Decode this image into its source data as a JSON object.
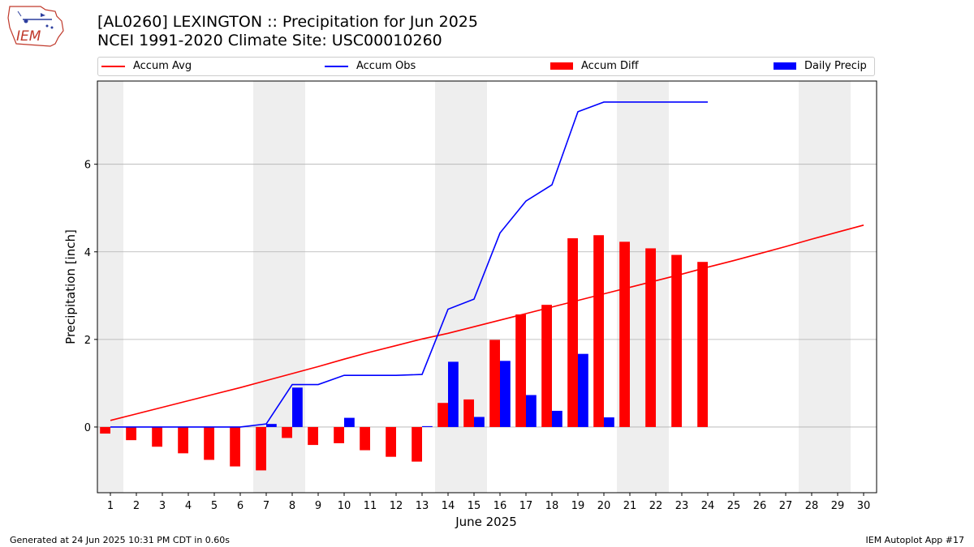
{
  "header": {
    "title": "[AL0260] LEXINGTON :: Precipitation for Jun 2025",
    "subtitle": "NCEI 1991-2020 Climate Site: USC00010260"
  },
  "logo": {
    "text": "IEM"
  },
  "footer": {
    "generated": "Generated at 24 Jun 2025 10:31 PM CDT in 0.60s",
    "app": "IEM Autoplot App #17"
  },
  "colors": {
    "avg": "#ff0000",
    "obs": "#0000ff",
    "diff": "#ff0000",
    "daily": "#0000ff",
    "weekend": "#eeeeee",
    "grid": "#b0b0b0"
  },
  "chart_data": {
    "type": "bar",
    "xlabel": "June 2025",
    "ylabel": "Precipitation [inch]",
    "xlim": [
      0.5,
      30.5
    ],
    "ylim": [
      -1.5,
      7.9
    ],
    "yticks": [
      0,
      2,
      4,
      6
    ],
    "grid": true,
    "legend_position": "top",
    "legend": [
      {
        "name": "Accum Avg",
        "kind": "line",
        "color": "#ff0000"
      },
      {
        "name": "Accum Obs",
        "kind": "line",
        "color": "#0000ff"
      },
      {
        "name": "Accum Diff",
        "kind": "bar",
        "color": "#ff0000"
      },
      {
        "name": "Daily Precip",
        "kind": "bar",
        "color": "#0000ff"
      }
    ],
    "weekend_days": [
      1,
      7,
      8,
      14,
      15,
      21,
      22,
      28,
      29
    ],
    "days": [
      1,
      2,
      3,
      4,
      5,
      6,
      7,
      8,
      9,
      10,
      11,
      12,
      13,
      14,
      15,
      16,
      17,
      18,
      19,
      20,
      21,
      22,
      23,
      24,
      25,
      26,
      27,
      28,
      29,
      30
    ],
    "series": [
      {
        "name": "Accum Avg",
        "type": "line",
        "values": [
          0.15,
          0.3,
          0.45,
          0.6,
          0.75,
          0.9,
          1.06,
          1.22,
          1.38,
          1.55,
          1.71,
          1.86,
          2.01,
          2.14,
          2.29,
          2.44,
          2.59,
          2.74,
          2.89,
          3.04,
          3.19,
          3.34,
          3.49,
          3.65,
          3.8,
          3.96,
          4.12,
          4.29,
          4.45,
          4.61
        ]
      },
      {
        "name": "Accum Obs",
        "type": "line",
        "values": [
          0,
          0,
          0,
          0,
          0,
          0,
          0.07,
          0.97,
          0.97,
          1.18,
          1.18,
          1.18,
          1.2,
          2.69,
          2.92,
          4.43,
          5.16,
          5.53,
          7.2,
          7.42,
          7.42,
          7.42,
          7.42,
          7.42
        ]
      },
      {
        "name": "Accum Diff",
        "type": "bar",
        "values": [
          -0.15,
          -0.3,
          -0.45,
          -0.6,
          -0.75,
          -0.9,
          -0.99,
          -0.25,
          -0.41,
          -0.37,
          -0.53,
          -0.68,
          -0.79,
          0.55,
          0.63,
          1.99,
          2.57,
          2.79,
          4.31,
          4.38,
          4.23,
          4.08,
          3.93,
          3.77
        ]
      },
      {
        "name": "Daily Precip",
        "type": "bar",
        "values": [
          0,
          0,
          0,
          0,
          0,
          0,
          0.07,
          0.9,
          0,
          0.21,
          0,
          0,
          0.02,
          1.49,
          0.23,
          1.51,
          0.73,
          0.37,
          1.67,
          0.22,
          0,
          0,
          0,
          0
        ]
      }
    ]
  }
}
